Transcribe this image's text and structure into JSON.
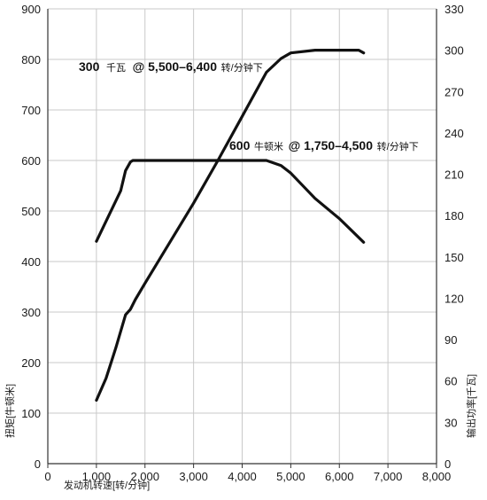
{
  "chart_data": {
    "type": "line",
    "title": "",
    "xlabel": "发动机转速[转/分钟]",
    "ylabel_left": "扭矩[牛顿米]",
    "ylabel_right": "输出功率[千瓦]",
    "xlim": [
      0,
      8000
    ],
    "ylim_left": [
      0,
      900
    ],
    "ylim_right": [
      0,
      330
    ],
    "x_ticks": [
      "0",
      "1,000",
      "2,000",
      "3,000",
      "4,000",
      "5,000",
      "6,000",
      "7,000",
      "8,000"
    ],
    "y_ticks_left": [
      "0",
      "100",
      "200",
      "300",
      "400",
      "500",
      "600",
      "700",
      "800",
      "900"
    ],
    "y_ticks_right": [
      "0",
      "30",
      "60",
      "90",
      "120",
      "150",
      "180",
      "210",
      "240",
      "270",
      "300",
      "330"
    ],
    "grid": true,
    "series": [
      {
        "axis": "left",
        "x": [
          1000,
          1250,
          1500,
          1600,
          1700,
          1750,
          2000,
          3000,
          4000,
          4500,
          4800,
          5000,
          5500,
          6000,
          6500
        ],
        "y": [
          440,
          490,
          540,
          580,
          597,
          600,
          600,
          600,
          600,
          600,
          590,
          575,
          525,
          485,
          438
        ]
      },
      {
        "axis": "right",
        "x": [
          1000,
          1200,
          1400,
          1600,
          1700,
          1800,
          2000,
          2500,
          3000,
          3500,
          4000,
          4500,
          4800,
          5000,
          5500,
          6000,
          6400,
          6500
        ],
        "y": [
          46,
          62,
          84,
          108,
          112,
          119,
          131,
          160,
          189,
          220,
          252,
          284,
          294,
          298,
          300,
          300,
          300,
          298
        ]
      }
    ],
    "annotations": [
      {
        "value": "300",
        "unit": "千瓦",
        "at": "@ 5,500–6,400",
        "suffix": "转/分钟下"
      },
      {
        "value": "600",
        "unit": "牛顿米",
        "at": "@ 1,750–4,500",
        "suffix": "转/分钟下"
      }
    ]
  }
}
